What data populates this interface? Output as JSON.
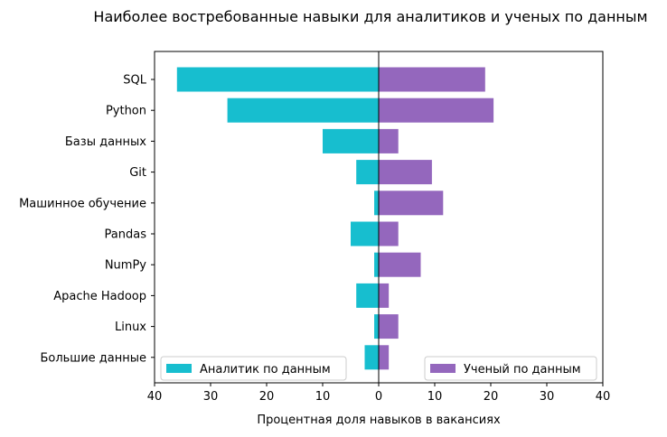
{
  "chart_data": {
    "type": "bar",
    "orientation": "horizontal",
    "layout": "diverging",
    "title": "Наиболее востребованные навыки для аналитиков и ученых по данным",
    "xlabel": "Процентная доля навыков в вакансиях",
    "ylabel": "",
    "xlim": [
      -40,
      40
    ],
    "xticks": [
      -40,
      -30,
      -20,
      -10,
      0,
      10,
      20,
      30,
      40
    ],
    "xtick_labels": [
      "40",
      "30",
      "20",
      "10",
      "0",
      "10",
      "20",
      "30",
      "40"
    ],
    "categories": [
      "SQL",
      "Python",
      "Базы данных",
      "Git",
      "Машинное обучение",
      "Pandas",
      "NumPy",
      "Apache Hadoop",
      "Linux",
      "Большие данные"
    ],
    "series": [
      {
        "name": "Аналитик по данным",
        "color": "#17becf",
        "direction": "left",
        "legend_position": "lower-left",
        "values": [
          36,
          27,
          10,
          4,
          0.8,
          5,
          0.8,
          4,
          0.8,
          2.5
        ]
      },
      {
        "name": "Ученый по данным",
        "color": "#9467bd",
        "direction": "right",
        "legend_position": "lower-right",
        "values": [
          19,
          20.5,
          3.5,
          9.5,
          11.5,
          3.5,
          7.5,
          1.8,
          3.5,
          1.8
        ]
      }
    ],
    "grid": false,
    "zero_line": true
  }
}
